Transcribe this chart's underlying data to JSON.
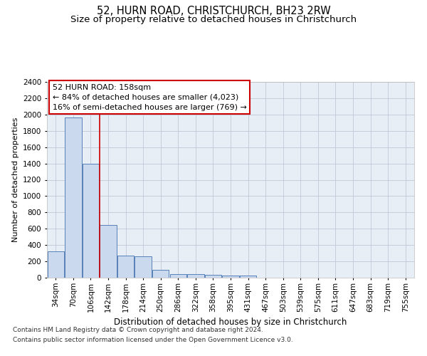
{
  "title": "52, HURN ROAD, CHRISTCHURCH, BH23 2RW",
  "subtitle": "Size of property relative to detached houses in Christchurch",
  "xlabel": "Distribution of detached houses by size in Christchurch",
  "ylabel": "Number of detached properties",
  "categories": [
    "34sqm",
    "70sqm",
    "106sqm",
    "142sqm",
    "178sqm",
    "214sqm",
    "250sqm",
    "286sqm",
    "322sqm",
    "358sqm",
    "395sqm",
    "431sqm",
    "467sqm",
    "503sqm",
    "539sqm",
    "575sqm",
    "611sqm",
    "647sqm",
    "683sqm",
    "719sqm",
    "755sqm"
  ],
  "values": [
    320,
    1960,
    1400,
    645,
    270,
    260,
    100,
    48,
    42,
    32,
    28,
    22,
    0,
    0,
    0,
    0,
    0,
    0,
    0,
    0,
    0
  ],
  "bar_color": "#cad9ed",
  "bar_edge_color": "#5580b8",
  "bar_linewidth": 0.7,
  "ylim": [
    0,
    2400
  ],
  "yticks": [
    0,
    200,
    400,
    600,
    800,
    1000,
    1200,
    1400,
    1600,
    1800,
    2000,
    2200,
    2400
  ],
  "property_line_x": 2.5,
  "property_line_color": "#cc0000",
  "annotation_text": "52 HURN ROAD: 158sqm\n← 84% of detached houses are smaller (4,023)\n16% of semi-detached houses are larger (769) →",
  "annotation_box_color": "#cc0000",
  "grid_color": "#c0c8d8",
  "background_color": "#e8eef5",
  "footer_line1": "Contains HM Land Registry data © Crown copyright and database right 2024.",
  "footer_line2": "Contains public sector information licensed under the Open Government Licence v3.0.",
  "title_fontsize": 10.5,
  "subtitle_fontsize": 9.5,
  "xlabel_fontsize": 8.5,
  "ylabel_fontsize": 8,
  "tick_fontsize": 7.5,
  "annotation_fontsize": 8,
  "footer_fontsize": 6.5
}
